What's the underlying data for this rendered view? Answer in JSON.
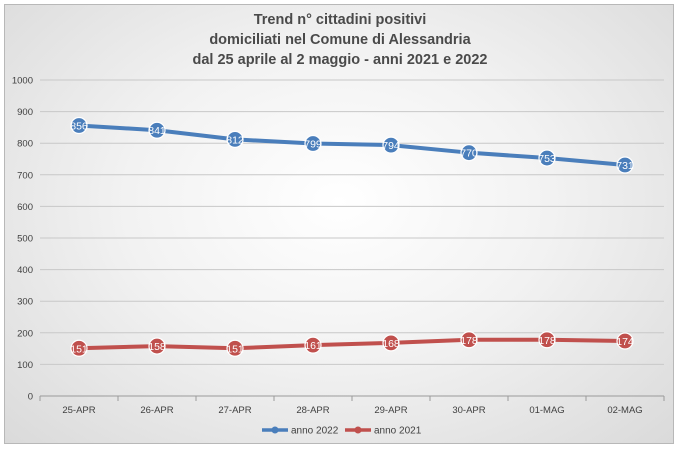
{
  "chart_data": {
    "type": "line",
    "title_lines": [
      "Trend n° cittadini positivi",
      "domiciliati nel Comune di Alessandria",
      "dal 25 aprile al 2 maggio - anni 2021 e 2022"
    ],
    "categories": [
      "25-APR",
      "26-APR",
      "27-APR",
      "28-APR",
      "29-APR",
      "30-APR",
      "01-MAG",
      "02-MAG"
    ],
    "ylim": [
      0,
      1000
    ],
    "yticks": [
      0,
      100,
      200,
      300,
      400,
      500,
      600,
      700,
      800,
      900,
      1000
    ],
    "grid": true,
    "legend_position": "bottom",
    "series": [
      {
        "name": "anno 2022",
        "color": "#4a7ebb",
        "values": [
          856,
          841,
          812,
          799,
          794,
          770,
          753,
          731
        ]
      },
      {
        "name": "anno 2021",
        "color": "#c0504d",
        "values": [
          151,
          158,
          151,
          161,
          168,
          178,
          178,
          174
        ]
      }
    ]
  }
}
